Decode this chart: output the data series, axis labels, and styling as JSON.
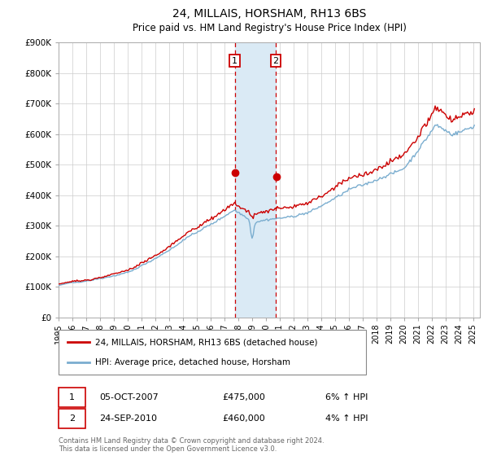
{
  "title": "24, MILLAIS, HORSHAM, RH13 6BS",
  "subtitle": "Price paid vs. HM Land Registry's House Price Index (HPI)",
  "ylabel_ticks": [
    "£0",
    "£100K",
    "£200K",
    "£300K",
    "£400K",
    "£500K",
    "£600K",
    "£700K",
    "£800K",
    "£900K"
  ],
  "ylim": [
    0,
    900000
  ],
  "xlim_start": 1995.0,
  "xlim_end": 2025.5,
  "sale1_date": 2007.76,
  "sale1_price": 475000,
  "sale2_date": 2010.73,
  "sale2_price": 460000,
  "sale1_label": "1",
  "sale2_label": "2",
  "legend_line1": "24, MILLAIS, HORSHAM, RH13 6BS (detached house)",
  "legend_line2": "HPI: Average price, detached house, Horsham",
  "table_row1": [
    "1",
    "05-OCT-2007",
    "£475,000",
    "6% ↑ HPI"
  ],
  "table_row2": [
    "2",
    "24-SEP-2010",
    "£460,000",
    "4% ↑ HPI"
  ],
  "footer": "Contains HM Land Registry data © Crown copyright and database right 2024.\nThis data is licensed under the Open Government Licence v3.0.",
  "line_color_red": "#cc0000",
  "line_color_blue": "#7aadcf",
  "shade_color": "#daeaf5",
  "vline_color": "#cc0000",
  "background_color": "#ffffff",
  "grid_color": "#cccccc"
}
